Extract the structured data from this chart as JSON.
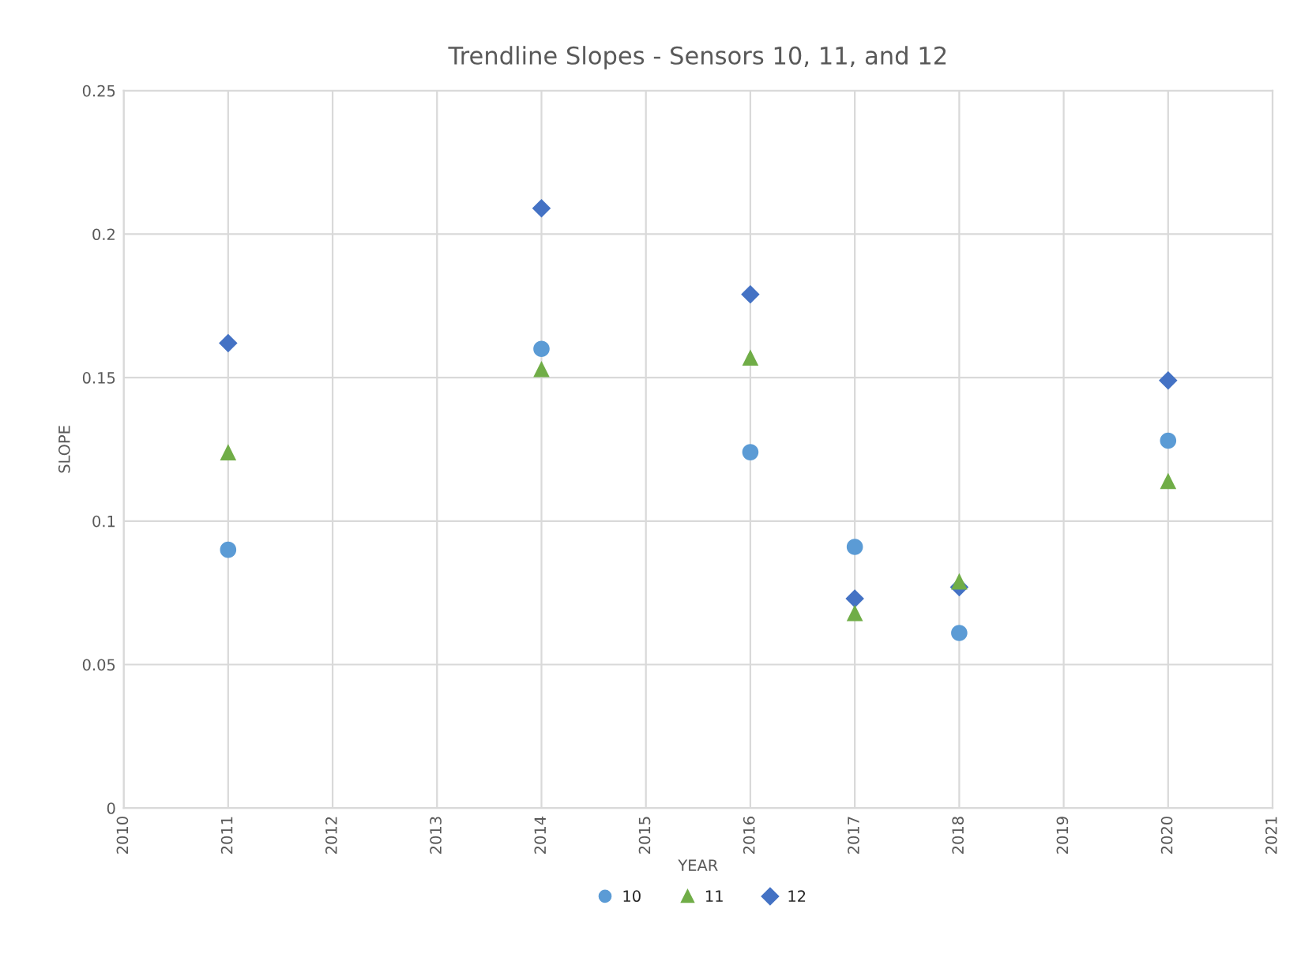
{
  "chart_data": {
    "type": "scatter",
    "title": "Trendline Slopes - Sensors 10, 11, and 12",
    "xlabel": "YEAR",
    "ylabel": "SLOPE",
    "x": [
      2011,
      2014,
      2016,
      2017,
      2018,
      2020
    ],
    "series": [
      {
        "name": "10",
        "color": "#5b9bd5",
        "marker": "circle",
        "values": [
          0.09,
          0.16,
          0.124,
          0.091,
          0.061,
          0.128
        ]
      },
      {
        "name": "11",
        "color": "#70ad47",
        "marker": "triangle",
        "values": [
          0.124,
          0.153,
          0.157,
          0.068,
          0.079,
          0.114
        ]
      },
      {
        "name": "12",
        "color": "#4472c4",
        "marker": "diamond",
        "values": [
          0.162,
          0.209,
          0.179,
          0.073,
          0.077,
          0.149
        ]
      }
    ],
    "xlim": [
      2010,
      2021
    ],
    "xticks": [
      2010,
      2011,
      2012,
      2013,
      2014,
      2015,
      2016,
      2017,
      2018,
      2019,
      2020,
      2021
    ],
    "ylim": [
      0,
      0.25
    ],
    "yticks": [
      0,
      0.05,
      0.1,
      0.15,
      0.2,
      0.25
    ],
    "grid": true,
    "legend": "bottom"
  }
}
